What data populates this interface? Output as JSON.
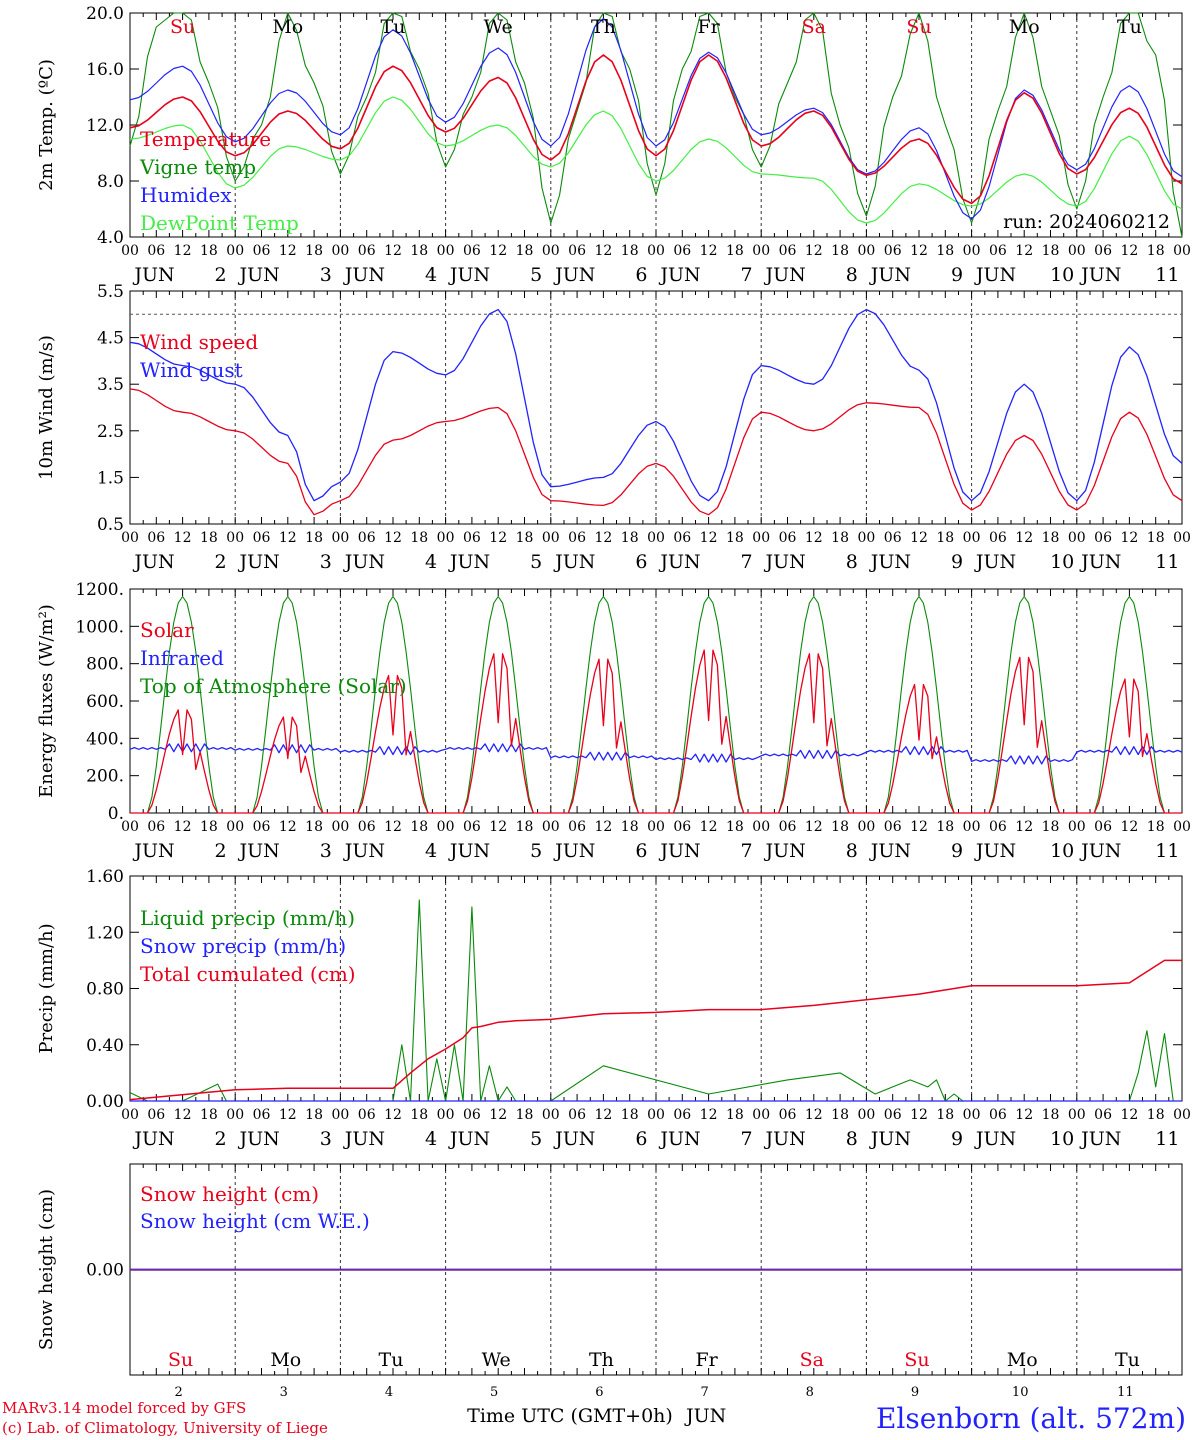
{
  "chart_data": [
    {
      "type": "line",
      "ylabel": "2m Temp. (ºC)",
      "ylim": [
        4,
        20
      ],
      "yticks": [
        "4.0",
        "8.0",
        "12.0",
        "16.0",
        "20.0"
      ],
      "day_labels": [
        "Su",
        "Mo",
        "Tu",
        "We",
        "Th",
        "Fr",
        "Sa",
        "Su",
        "Mo",
        "Tu"
      ],
      "day_colors": [
        "#e8001c",
        "#000000",
        "#000000",
        "#000000",
        "#000000",
        "#000000",
        "#e8001c",
        "#e8001c",
        "#000000",
        "#000000"
      ],
      "annotation": "run: 2024060212",
      "series": [
        {
          "name": "Temperature",
          "color": "#e8001c",
          "x_hours": [
            0,
            12,
            24,
            36,
            48,
            60,
            72,
            84,
            96,
            108,
            120,
            132,
            144,
            156,
            168,
            180,
            192,
            204,
            216,
            228,
            240
          ],
          "values": [
            11.8,
            14,
            9.8,
            13,
            10.3,
            16.2,
            11.5,
            15.4,
            9.5,
            17,
            9.8,
            17,
            10.5,
            13,
            8.4,
            11,
            6.4,
            14.3,
            8.5,
            13.2,
            7.8
          ]
        },
        {
          "name": "Vigne temp",
          "color": "#0a8a0a",
          "x_hours": [
            0,
            6,
            12,
            18,
            24,
            30,
            36,
            42,
            48,
            54,
            60,
            66,
            72,
            78,
            84,
            90,
            96,
            102,
            108,
            114,
            120,
            126,
            132,
            138,
            144,
            150,
            156,
            162,
            168,
            174,
            180,
            186,
            192,
            198,
            204,
            210,
            216,
            222,
            228,
            234,
            240
          ],
          "values": [
            10.5,
            19,
            21,
            15,
            8,
            12,
            20,
            15,
            8.5,
            14,
            21,
            16,
            9,
            14,
            21,
            15,
            5,
            13,
            21,
            16,
            7,
            16,
            21,
            14,
            9,
            15,
            21,
            12,
            5.5,
            14,
            20,
            12,
            5,
            13,
            20,
            13,
            6,
            14,
            21,
            17,
            4
          ]
        },
        {
          "name": "Humidex",
          "color": "#2222ff",
          "x_hours": [
            0,
            12,
            24,
            36,
            48,
            60,
            72,
            84,
            96,
            108,
            120,
            132,
            144,
            156,
            168,
            180,
            192,
            204,
            216,
            228,
            240
          ],
          "values": [
            13.8,
            16.2,
            10.8,
            14.5,
            11.3,
            18.8,
            12.2,
            17.5,
            10.5,
            19.6,
            10.5,
            17.2,
            11.3,
            13.2,
            8.5,
            11.8,
            5.3,
            14.5,
            8.8,
            14.8,
            8.3
          ]
        },
        {
          "name": "DewPoint Temp",
          "color": "#44ee44",
          "x_hours": [
            0,
            12,
            24,
            36,
            48,
            60,
            72,
            84,
            96,
            108,
            120,
            132,
            144,
            156,
            168,
            180,
            192,
            204,
            216,
            228,
            240
          ],
          "values": [
            11,
            12,
            7.5,
            10.5,
            9.5,
            14,
            10.5,
            12,
            9,
            13,
            8,
            11,
            8.5,
            8.2,
            5,
            7.8,
            6.2,
            8.5,
            6.2,
            11.2,
            6
          ]
        }
      ]
    },
    {
      "type": "line",
      "ylabel": "10m Wind (m/s)",
      "ylim": [
        0.5,
        5.5
      ],
      "yticks": [
        "0.5",
        "1.5",
        "2.5",
        "3.5",
        "4.5",
        "5.5"
      ],
      "reference_line": 5.0,
      "series": [
        {
          "name": "Wind speed",
          "color": "#e8001c",
          "x_hours": [
            0,
            12,
            24,
            36,
            42,
            48,
            60,
            72,
            84,
            96,
            108,
            120,
            132,
            144,
            156,
            168,
            180,
            192,
            204,
            216,
            228,
            240
          ],
          "values": [
            3.4,
            2.9,
            2.5,
            1.8,
            0.7,
            1.0,
            2.3,
            2.7,
            3.0,
            1.0,
            0.9,
            1.8,
            0.7,
            2.9,
            2.5,
            3.1,
            3.0,
            0.8,
            2.4,
            0.8,
            2.9,
            1.0
          ]
        },
        {
          "name": "Wind gust",
          "color": "#2222ff",
          "x_hours": [
            0,
            12,
            24,
            36,
            42,
            48,
            60,
            72,
            84,
            96,
            108,
            120,
            132,
            144,
            156,
            168,
            180,
            192,
            204,
            216,
            228,
            240
          ],
          "values": [
            4.4,
            3.9,
            3.5,
            2.4,
            1.0,
            1.4,
            4.2,
            3.7,
            5.1,
            1.3,
            1.5,
            2.7,
            1.0,
            3.9,
            3.5,
            5.1,
            3.8,
            1.0,
            3.5,
            1.0,
            4.3,
            1.8
          ]
        }
      ]
    },
    {
      "type": "line",
      "ylabel": "Energy fluxes (W/m²)",
      "ylim": [
        0,
        1200
      ],
      "yticks": [
        "0.",
        "200.",
        "400.",
        "600.",
        "800.",
        "1000.",
        "1200."
      ],
      "series": [
        {
          "name": "Solar",
          "color": "#e8001c",
          "daily_peak": [
            570,
            530,
            760,
            880,
            850,
            900,
            880,
            710,
            860,
            740
          ]
        },
        {
          "name": "Infrared",
          "color": "#2222ff",
          "daily_mean": [
            345,
            340,
            330,
            345,
            300,
            290,
            310,
            330,
            280,
            330
          ]
        },
        {
          "name": "Top of Atmosphere (Solar)",
          "color": "#0a8a0a",
          "daily_peak": [
            1160,
            1160,
            1160,
            1160,
            1160,
            1160,
            1160,
            1160,
            1160,
            1160
          ]
        }
      ]
    },
    {
      "type": "line",
      "ylabel": "Precip (mm/h)",
      "ylim": [
        0,
        1.6
      ],
      "yticks": [
        "0.00",
        "0.40",
        "0.80",
        "1.20",
        "1.60"
      ],
      "series": [
        {
          "name": "Liquid precip (mm/h)",
          "color": "#0a8a0a",
          "x_hours": [
            0,
            4,
            12,
            20,
            22,
            26,
            60,
            62,
            64,
            66,
            68,
            70,
            72,
            74,
            76,
            78,
            80,
            82,
            84,
            86,
            88,
            96,
            108,
            132,
            150,
            162,
            170,
            174,
            178,
            182,
            184,
            186,
            188,
            190,
            228,
            230,
            232,
            234,
            236,
            238,
            240
          ],
          "values": [
            0.06,
            0,
            0,
            0.12,
            0,
            0,
            0,
            0.4,
            0,
            1.43,
            0,
            0.3,
            0,
            0.4,
            0,
            1.38,
            0,
            0.25,
            0,
            0.1,
            0,
            0,
            0.25,
            0.05,
            0.15,
            0.2,
            0.05,
            0.1,
            0.15,
            0.1,
            0.15,
            0,
            0.05,
            0,
            0,
            0.2,
            0.5,
            0.1,
            0.48,
            0,
            0
          ]
        },
        {
          "name": "Snow precip (mm/h)",
          "color": "#2222ff",
          "x_hours": [
            0,
            240
          ],
          "values": [
            0,
            0
          ]
        },
        {
          "name": "Total cumulated (cm)",
          "color": "#e8001c",
          "x_hours": [
            0,
            24,
            36,
            60,
            64,
            68,
            72,
            76,
            78,
            80,
            84,
            88,
            96,
            108,
            120,
            132,
            144,
            156,
            168,
            180,
            192,
            204,
            216,
            228,
            232,
            236,
            240
          ],
          "values": [
            0.01,
            0.08,
            0.09,
            0.09,
            0.2,
            0.3,
            0.37,
            0.45,
            0.52,
            0.53,
            0.56,
            0.57,
            0.58,
            0.62,
            0.63,
            0.65,
            0.65,
            0.68,
            0.72,
            0.76,
            0.82,
            0.82,
            0.82,
            0.84,
            0.92,
            1.0,
            1.0
          ]
        }
      ]
    },
    {
      "type": "line",
      "ylabel": "Snow height (cm)",
      "ylim": [
        -1,
        1
      ],
      "yticks": [
        "0.00"
      ],
      "series": [
        {
          "name": "Snow height (cm)",
          "color": "#e8001c",
          "x_hours": [
            0,
            240
          ],
          "values": [
            0,
            0
          ]
        },
        {
          "name": "Snow height (cm W.E.)",
          "color": "#2222ff",
          "x_hours": [
            0,
            240
          ],
          "values": [
            0,
            0
          ]
        }
      ]
    }
  ],
  "x_axis": {
    "hour_ticks": [
      "00",
      "06",
      "12",
      "18"
    ],
    "end_tick": "00",
    "month": "JUN",
    "days": [
      "2",
      "3",
      "4",
      "5",
      "6",
      "7",
      "8",
      "9",
      "10",
      "11"
    ],
    "xlabel": "Time UTC (GMT+0h)",
    "month_label": "JUN"
  },
  "footer": {
    "credit_line1": "MARv3.14 model forced by GFS",
    "credit_line2": "(c) Lab. of Climatology, University of Liege",
    "location": "Elsenborn (alt. 572m)"
  }
}
